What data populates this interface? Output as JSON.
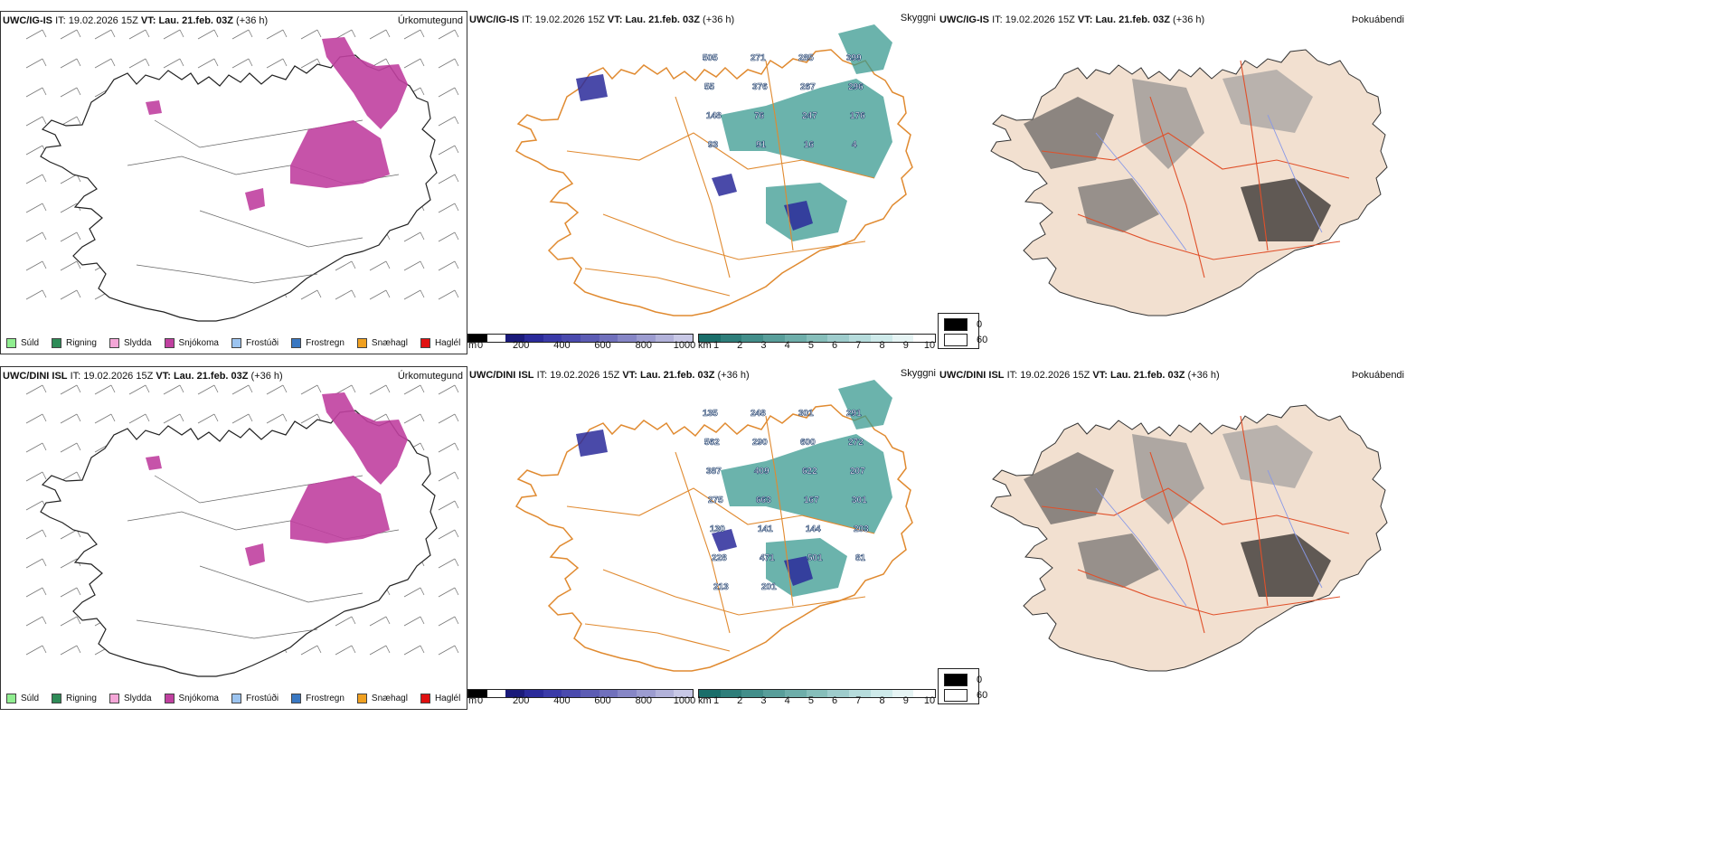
{
  "rows": [
    {
      "model": "UWC/IG-IS",
      "it_label": "IT:",
      "it_value": "19.02.2026 15Z",
      "vt_label": "VT:",
      "vt_value": "Lau. 21.feb. 03Z",
      "lead": "(+36 h)",
      "precip_title": "Úrkomutegund",
      "cloud_title": "Skyggni",
      "fog_title": "Þokuábendi",
      "cloud_numbers": [
        "505",
        "271",
        "285",
        "399",
        "55",
        "376",
        "267",
        "296",
        "148",
        "76",
        "247",
        "176",
        "93",
        "91",
        "16",
        "4"
      ]
    },
    {
      "model": "UWC/DINI ISL",
      "it_label": "IT:",
      "it_value": "19.02.2026 15Z",
      "vt_label": "VT:",
      "vt_value": "Lau. 21.feb. 03Z",
      "lead": "(+36 h)",
      "precip_title": "Úrkomutegund",
      "cloud_title": "Skyggni",
      "fog_title": "Þokuábendi",
      "cloud_numbers": [
        "135",
        "248",
        "301",
        "291",
        "562",
        "290",
        "600",
        "272",
        "387",
        "409",
        "622",
        "207",
        "275",
        "663",
        "167",
        "301",
        "130",
        "141",
        "144",
        "203",
        "228",
        "471",
        "501",
        "81",
        "213",
        "201"
      ]
    }
  ],
  "precip_legend": [
    {
      "label": "Súld",
      "color": "#90ee90"
    },
    {
      "label": "Rigning",
      "color": "#2e8b57"
    },
    {
      "label": "Slydda",
      "color": "#f4a6d7"
    },
    {
      "label": "Snjókoma",
      "color": "#c040a0"
    },
    {
      "label": "Frostúði",
      "color": "#9cc4f0"
    },
    {
      "label": "Frostregn",
      "color": "#3a78c2"
    },
    {
      "label": "Snæhagl",
      "color": "#f0a020"
    },
    {
      "label": "Haglél",
      "color": "#e01010"
    }
  ],
  "cloudbase_scale": {
    "unit": "m",
    "ticks": [
      "0",
      "200",
      "400",
      "600",
      "800",
      "1000"
    ],
    "colors": [
      "#000000",
      "#ffffff",
      "#1a1a7a",
      "#2a2a9a",
      "#3a3aa8",
      "#4a4aae",
      "#5c5cb4",
      "#7070bc",
      "#8686c6",
      "#9c9cd0",
      "#b2b2da",
      "#c8c8e6"
    ]
  },
  "visibility_scale": {
    "unit": "km",
    "ticks": [
      "1",
      "2",
      "3",
      "4",
      "5",
      "6",
      "7",
      "8",
      "9",
      "10"
    ],
    "colors": [
      "#1a6e6a",
      "#2e7e7a",
      "#428e8a",
      "#589e9a",
      "#6eaeaa",
      "#86beba",
      "#9ecccc",
      "#b6dcdc",
      "#ceeaea",
      "#e6f4f4",
      "#ffffff"
    ]
  },
  "fog_scale": {
    "labels": [
      "0",
      "60"
    ],
    "colors": [
      "#000000",
      "#ffffff"
    ]
  }
}
